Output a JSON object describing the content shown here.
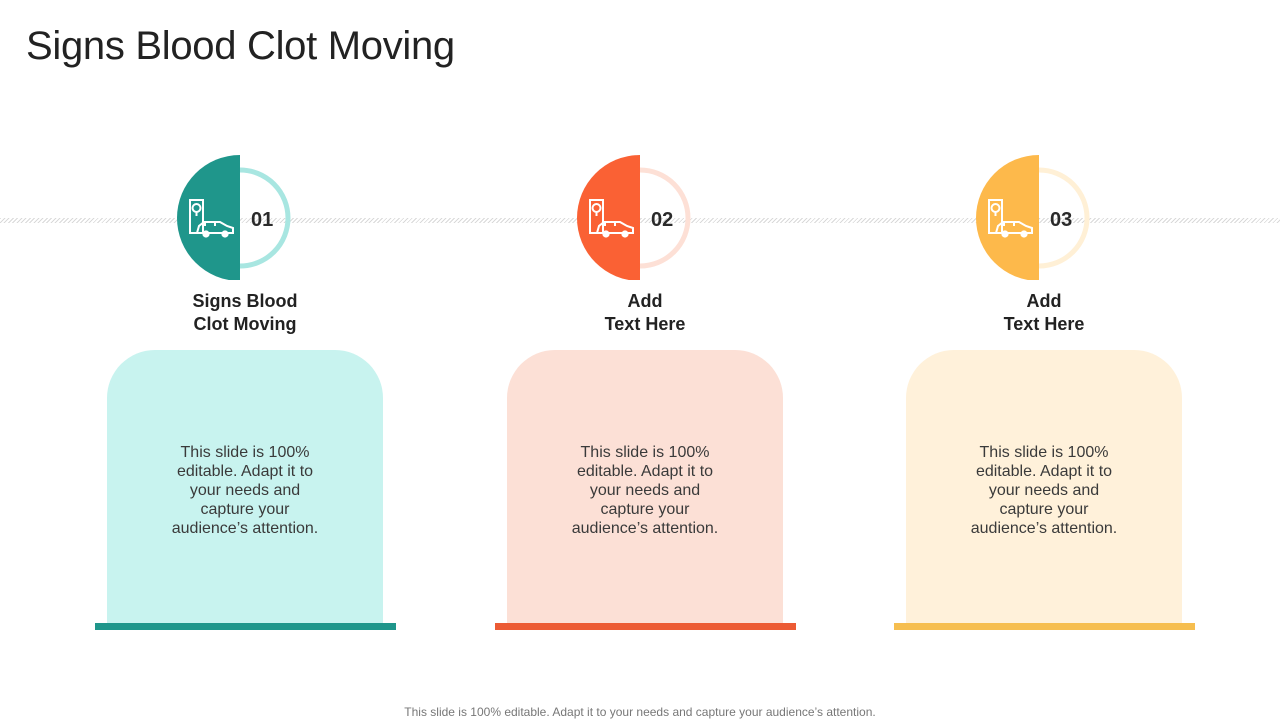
{
  "title": "Signs Blood Clot Moving",
  "footer": "This slide is 100% editable. Adapt it to your needs and capture your audience’s attention.",
  "steps": [
    {
      "number": "01",
      "label_line1": "Signs Blood",
      "label_line2": "Clot Moving",
      "text": "This slide is 100% editable. Adapt it to your needs and capture your audience’s attention.",
      "icon": "car-location-icon",
      "colors": {
        "accent": "#1f968b",
        "ring": "#a8e6e1",
        "card": "#c8f3ef",
        "base": "#1f968b"
      }
    },
    {
      "number": "02",
      "label_line1": "Add",
      "label_line2": "Text Here",
      "text": "This slide is 100% editable. Adapt it to your needs and capture your audience’s attention.",
      "icon": "car-location-icon",
      "colors": {
        "accent": "#fa6134",
        "ring": "#fde0d6",
        "card": "#fce0d6",
        "base": "#ec5b34"
      }
    },
    {
      "number": "03",
      "label_line1": "Add",
      "label_line2": "Text Here",
      "text": "This slide is 100% editable. Adapt it to your needs and capture your audience’s attention.",
      "icon": "car-location-icon",
      "colors": {
        "accent": "#fdb94b",
        "ring": "#fff0d6",
        "card": "#fff1da",
        "base": "#f6be4f"
      }
    }
  ]
}
